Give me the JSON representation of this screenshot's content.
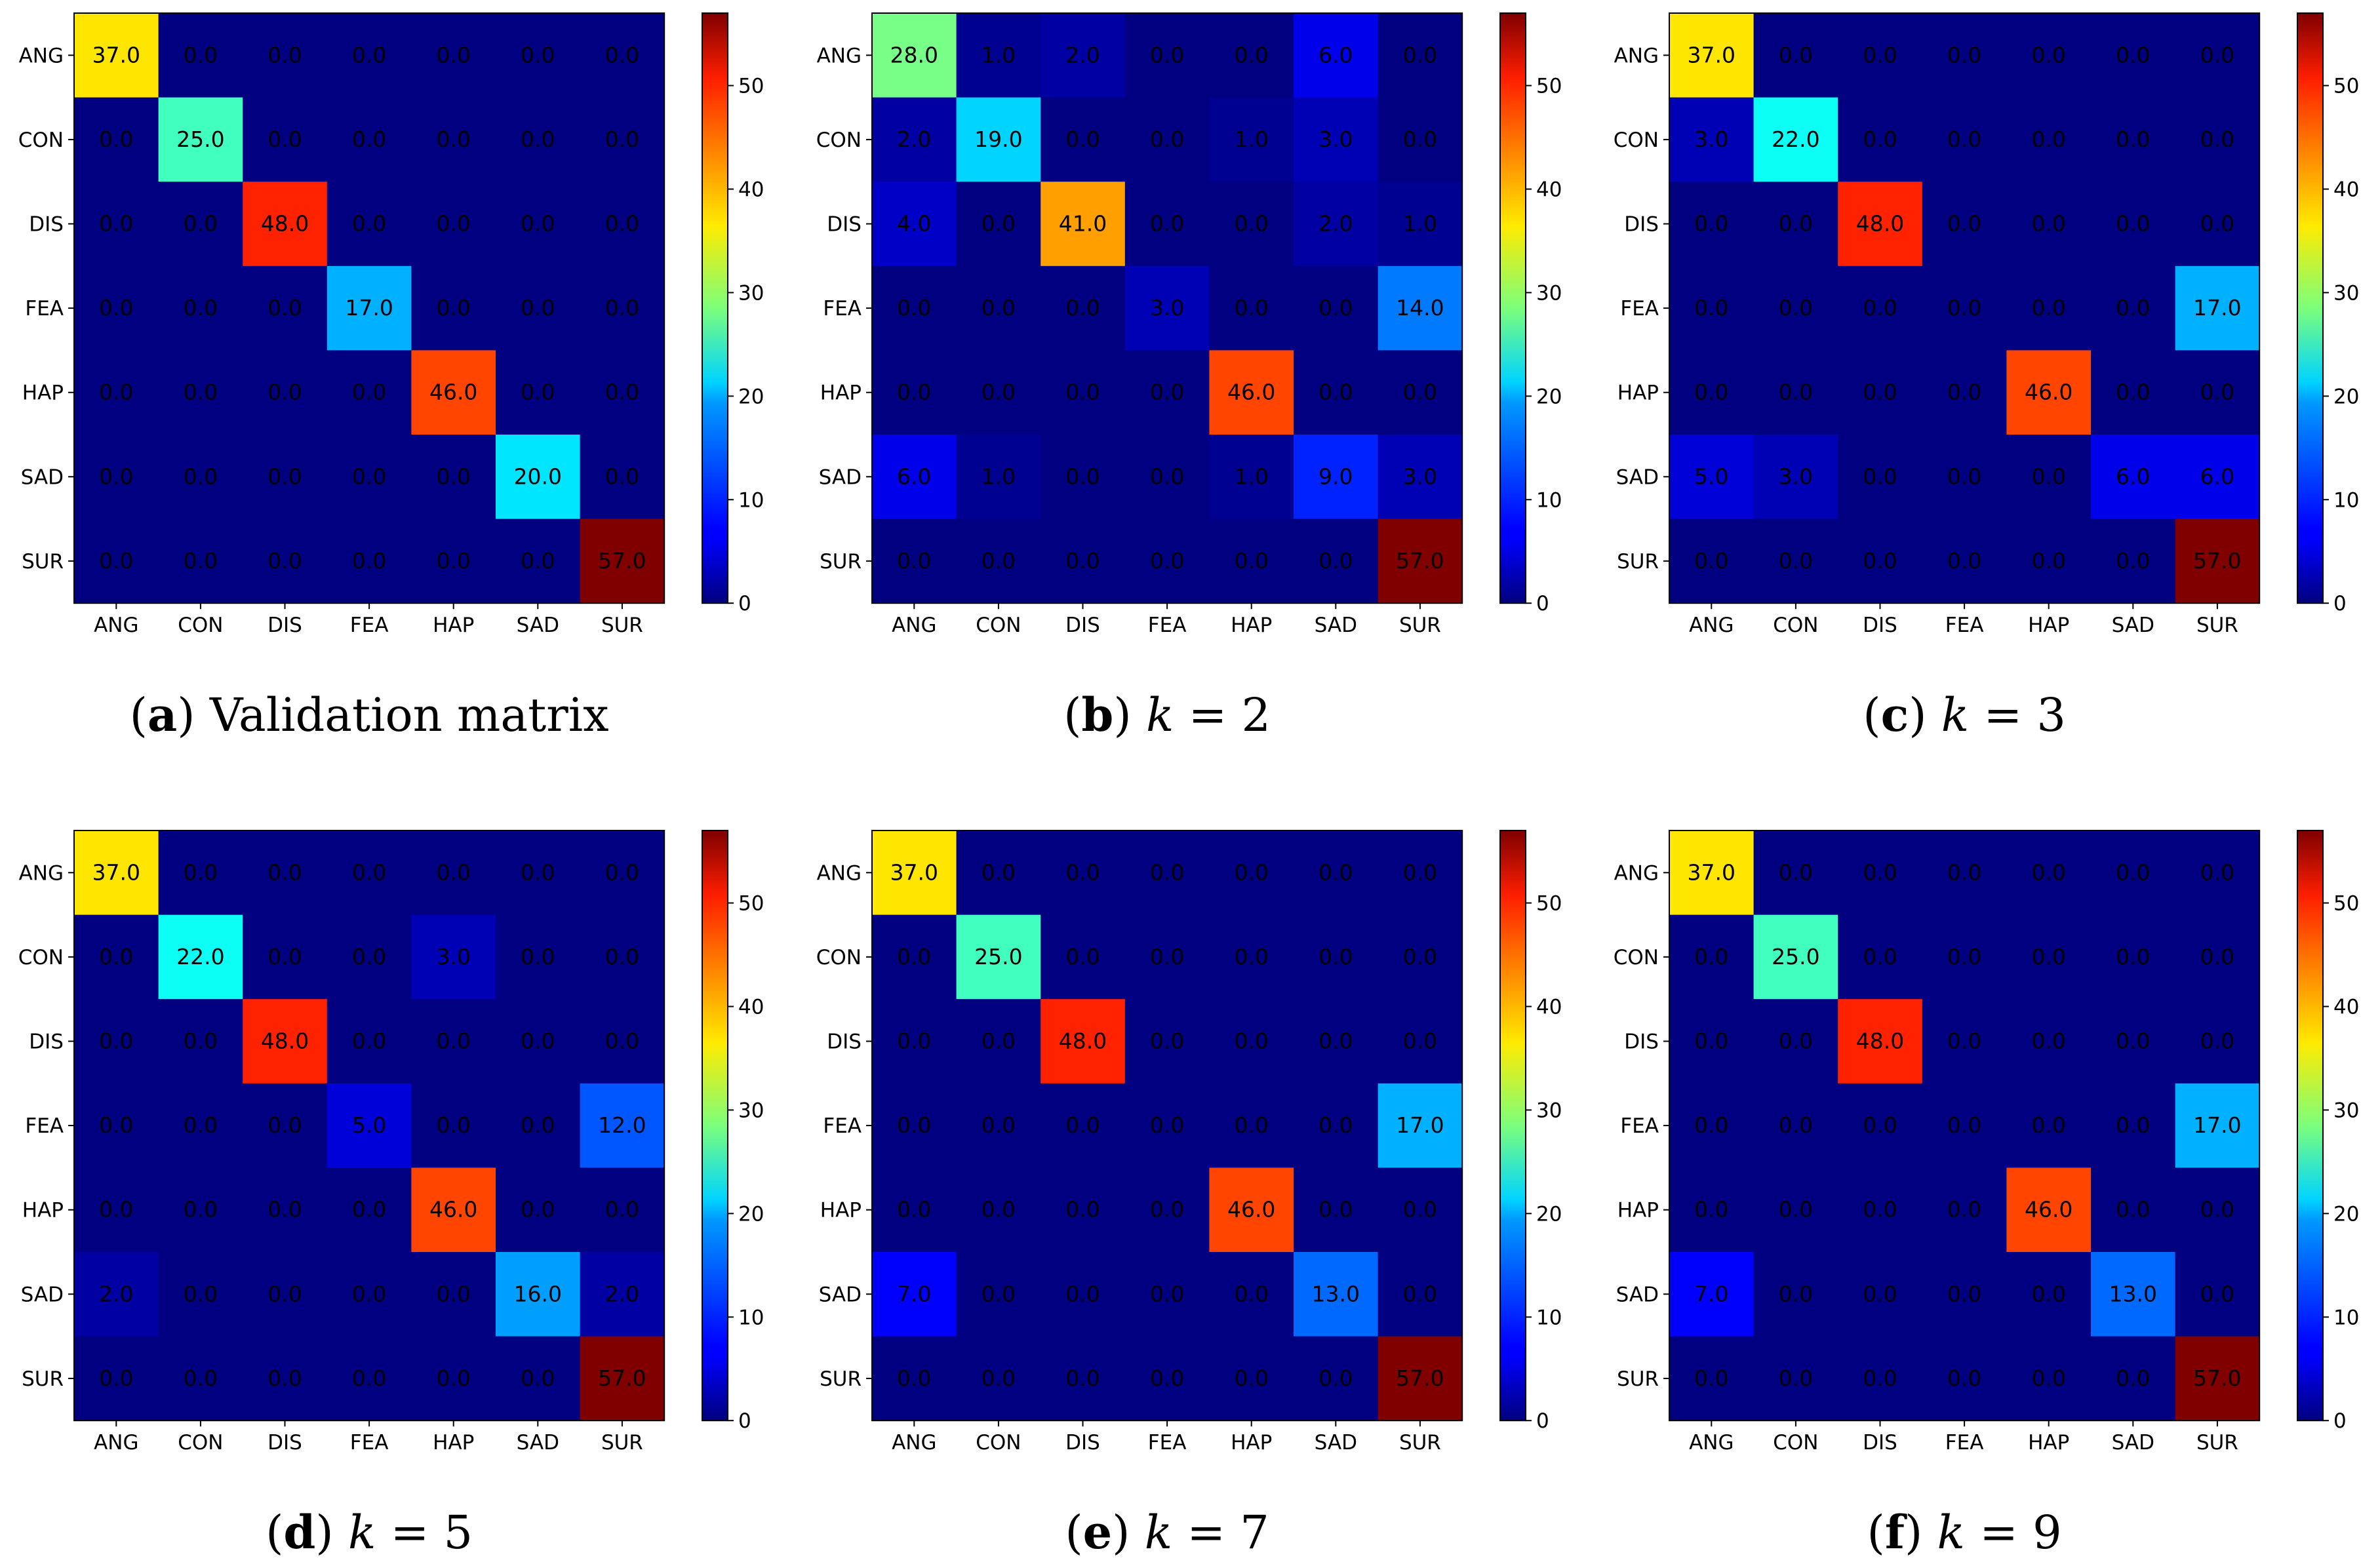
{
  "colors": {
    "colormap": "jet",
    "axis_line": "#000000",
    "text": "#000000"
  },
  "chart_data": [
    {
      "type": "heatmap",
      "panel_letter": "a",
      "caption_text": "Validation matrix",
      "caption_var": "",
      "caption_value": "",
      "x_categories": [
        "ANG",
        "CON",
        "DIS",
        "FEA",
        "HAP",
        "SAD",
        "SUR"
      ],
      "y_categories": [
        "ANG",
        "CON",
        "DIS",
        "FEA",
        "HAP",
        "SAD",
        "SUR"
      ],
      "values": [
        [
          37.0,
          0.0,
          0.0,
          0.0,
          0.0,
          0.0,
          0.0
        ],
        [
          0.0,
          25.0,
          0.0,
          0.0,
          0.0,
          0.0,
          0.0
        ],
        [
          0.0,
          0.0,
          48.0,
          0.0,
          0.0,
          0.0,
          0.0
        ],
        [
          0.0,
          0.0,
          0.0,
          17.0,
          0.0,
          0.0,
          0.0
        ],
        [
          0.0,
          0.0,
          0.0,
          0.0,
          46.0,
          0.0,
          0.0
        ],
        [
          0.0,
          0.0,
          0.0,
          0.0,
          0.0,
          20.0,
          0.0
        ],
        [
          0.0,
          0.0,
          0.0,
          0.0,
          0.0,
          0.0,
          57.0
        ]
      ],
      "value_labels": [
        [
          "37.0",
          "0.0",
          "0.0",
          "0.0",
          "0.0",
          "0.0",
          "0.0"
        ],
        [
          "0.0",
          "25.0",
          "0.0",
          "0.0",
          "0.0",
          "0.0",
          "0.0"
        ],
        [
          "0.0",
          "0.0",
          "48.0",
          "0.0",
          "0.0",
          "0.0",
          "0.0"
        ],
        [
          "0.0",
          "0.0",
          "0.0",
          "17.0",
          "0.0",
          "0.0",
          "0.0"
        ],
        [
          "0.0",
          "0.0",
          "0.0",
          "0.0",
          "46.0",
          "0.0",
          "0.0"
        ],
        [
          "0.0",
          "0.0",
          "0.0",
          "0.0",
          "0.0",
          "20.0",
          "0.0"
        ],
        [
          "0.0",
          "0.0",
          "0.0",
          "0.0",
          "0.0",
          "0.0",
          "57.0"
        ]
      ],
      "colorbar": {
        "min": 0,
        "max": 57,
        "ticks": [
          0,
          10,
          20,
          30,
          40,
          50
        ],
        "tick_labels": [
          "0",
          "10",
          "20",
          "30",
          "40",
          "50"
        ]
      }
    },
    {
      "type": "heatmap",
      "panel_letter": "b",
      "caption_text": "",
      "caption_var": "k",
      "caption_value": " = 2",
      "x_categories": [
        "ANG",
        "CON",
        "DIS",
        "FEA",
        "HAP",
        "SAD",
        "SUR"
      ],
      "y_categories": [
        "ANG",
        "CON",
        "DIS",
        "FEA",
        "HAP",
        "SAD",
        "SUR"
      ],
      "values": [
        [
          28.0,
          1.0,
          2.0,
          0.0,
          0.0,
          6.0,
          0.0
        ],
        [
          2.0,
          19.0,
          0.0,
          0.0,
          1.0,
          3.0,
          0.0
        ],
        [
          4.0,
          0.0,
          41.0,
          0.0,
          0.0,
          2.0,
          1.0
        ],
        [
          0.0,
          0.0,
          0.0,
          3.0,
          0.0,
          0.0,
          14.0
        ],
        [
          0.0,
          0.0,
          0.0,
          0.0,
          46.0,
          0.0,
          0.0
        ],
        [
          6.0,
          1.0,
          0.0,
          0.0,
          1.0,
          9.0,
          3.0
        ],
        [
          0.0,
          0.0,
          0.0,
          0.0,
          0.0,
          0.0,
          57.0
        ]
      ],
      "value_labels": [
        [
          "28.0",
          "1.0",
          "2.0",
          "0.0",
          "0.0",
          "6.0",
          "0.0"
        ],
        [
          "2.0",
          "19.0",
          "0.0",
          "0.0",
          "1.0",
          "3.0",
          "0.0"
        ],
        [
          "4.0",
          "0.0",
          "41.0",
          "0.0",
          "0.0",
          "2.0",
          "1.0"
        ],
        [
          "0.0",
          "0.0",
          "0.0",
          "3.0",
          "0.0",
          "0.0",
          "14.0"
        ],
        [
          "0.0",
          "0.0",
          "0.0",
          "0.0",
          "46.0",
          "0.0",
          "0.0"
        ],
        [
          "6.0",
          "1.0",
          "0.0",
          "0.0",
          "1.0",
          "9.0",
          "3.0"
        ],
        [
          "0.0",
          "0.0",
          "0.0",
          "0.0",
          "0.0",
          "0.0",
          "57.0"
        ]
      ],
      "colorbar": {
        "min": 0,
        "max": 57,
        "ticks": [
          0,
          10,
          20,
          30,
          40,
          50
        ],
        "tick_labels": [
          "0",
          "10",
          "20",
          "30",
          "40",
          "50"
        ]
      }
    },
    {
      "type": "heatmap",
      "panel_letter": "c",
      "caption_text": "",
      "caption_var": "k",
      "caption_value": " = 3",
      "x_categories": [
        "ANG",
        "CON",
        "DIS",
        "FEA",
        "HAP",
        "SAD",
        "SUR"
      ],
      "y_categories": [
        "ANG",
        "CON",
        "DIS",
        "FEA",
        "HAP",
        "SAD",
        "SUR"
      ],
      "values": [
        [
          37.0,
          0.0,
          0.0,
          0.0,
          0.0,
          0.0,
          0.0
        ],
        [
          3.0,
          22.0,
          0.0,
          0.0,
          0.0,
          0.0,
          0.0
        ],
        [
          0.0,
          0.0,
          48.0,
          0.0,
          0.0,
          0.0,
          0.0
        ],
        [
          0.0,
          0.0,
          0.0,
          0.0,
          0.0,
          0.0,
          17.0
        ],
        [
          0.0,
          0.0,
          0.0,
          0.0,
          46.0,
          0.0,
          0.0
        ],
        [
          5.0,
          3.0,
          0.0,
          0.0,
          0.0,
          6.0,
          6.0
        ],
        [
          0.0,
          0.0,
          0.0,
          0.0,
          0.0,
          0.0,
          57.0
        ]
      ],
      "value_labels": [
        [
          "37.0",
          "0.0",
          "0.0",
          "0.0",
          "0.0",
          "0.0",
          "0.0"
        ],
        [
          "3.0",
          "22.0",
          "0.0",
          "0.0",
          "0.0",
          "0.0",
          "0.0"
        ],
        [
          "0.0",
          "0.0",
          "48.0",
          "0.0",
          "0.0",
          "0.0",
          "0.0"
        ],
        [
          "0.0",
          "0.0",
          "0.0",
          "0.0",
          "0.0",
          "0.0",
          "17.0"
        ],
        [
          "0.0",
          "0.0",
          "0.0",
          "0.0",
          "46.0",
          "0.0",
          "0.0"
        ],
        [
          "5.0",
          "3.0",
          "0.0",
          "0.0",
          "0.0",
          "6.0",
          "6.0"
        ],
        [
          "0.0",
          "0.0",
          "0.0",
          "0.0",
          "0.0",
          "0.0",
          "57.0"
        ]
      ],
      "colorbar": {
        "min": 0,
        "max": 57,
        "ticks": [
          0,
          10,
          20,
          30,
          40,
          50
        ],
        "tick_labels": [
          "0",
          "10",
          "20",
          "30",
          "40",
          "50"
        ]
      }
    },
    {
      "type": "heatmap",
      "panel_letter": "d",
      "caption_text": "",
      "caption_var": "k",
      "caption_value": " = 5",
      "x_categories": [
        "ANG",
        "CON",
        "DIS",
        "FEA",
        "HAP",
        "SAD",
        "SUR"
      ],
      "y_categories": [
        "ANG",
        "CON",
        "DIS",
        "FEA",
        "HAP",
        "SAD",
        "SUR"
      ],
      "values": [
        [
          37.0,
          0.0,
          0.0,
          0.0,
          0.0,
          0.0,
          0.0
        ],
        [
          0.0,
          22.0,
          0.0,
          0.0,
          3.0,
          0.0,
          0.0
        ],
        [
          0.0,
          0.0,
          48.0,
          0.0,
          0.0,
          0.0,
          0.0
        ],
        [
          0.0,
          0.0,
          0.0,
          5.0,
          0.0,
          0.0,
          12.0
        ],
        [
          0.0,
          0.0,
          0.0,
          0.0,
          46.0,
          0.0,
          0.0
        ],
        [
          2.0,
          0.0,
          0.0,
          0.0,
          0.0,
          16.0,
          2.0
        ],
        [
          0.0,
          0.0,
          0.0,
          0.0,
          0.0,
          0.0,
          57.0
        ]
      ],
      "value_labels": [
        [
          "37.0",
          "0.0",
          "0.0",
          "0.0",
          "0.0",
          "0.0",
          "0.0"
        ],
        [
          "0.0",
          "22.0",
          "0.0",
          "0.0",
          "3.0",
          "0.0",
          "0.0"
        ],
        [
          "0.0",
          "0.0",
          "48.0",
          "0.0",
          "0.0",
          "0.0",
          "0.0"
        ],
        [
          "0.0",
          "0.0",
          "0.0",
          "5.0",
          "0.0",
          "0.0",
          "12.0"
        ],
        [
          "0.0",
          "0.0",
          "0.0",
          "0.0",
          "46.0",
          "0.0",
          "0.0"
        ],
        [
          "2.0",
          "0.0",
          "0.0",
          "0.0",
          "0.0",
          "16.0",
          "2.0"
        ],
        [
          "0.0",
          "0.0",
          "0.0",
          "0.0",
          "0.0",
          "0.0",
          "57.0"
        ]
      ],
      "colorbar": {
        "min": 0,
        "max": 57,
        "ticks": [
          0,
          10,
          20,
          30,
          40,
          50
        ],
        "tick_labels": [
          "0",
          "10",
          "20",
          "30",
          "40",
          "50"
        ]
      }
    },
    {
      "type": "heatmap",
      "panel_letter": "e",
      "caption_text": "",
      "caption_var": "k",
      "caption_value": " = 7",
      "x_categories": [
        "ANG",
        "CON",
        "DIS",
        "FEA",
        "HAP",
        "SAD",
        "SUR"
      ],
      "y_categories": [
        "ANG",
        "CON",
        "DIS",
        "FEA",
        "HAP",
        "SAD",
        "SUR"
      ],
      "values": [
        [
          37.0,
          0.0,
          0.0,
          0.0,
          0.0,
          0.0,
          0.0
        ],
        [
          0.0,
          25.0,
          0.0,
          0.0,
          0.0,
          0.0,
          0.0
        ],
        [
          0.0,
          0.0,
          48.0,
          0.0,
          0.0,
          0.0,
          0.0
        ],
        [
          0.0,
          0.0,
          0.0,
          0.0,
          0.0,
          0.0,
          17.0
        ],
        [
          0.0,
          0.0,
          0.0,
          0.0,
          46.0,
          0.0,
          0.0
        ],
        [
          7.0,
          0.0,
          0.0,
          0.0,
          0.0,
          13.0,
          0.0
        ],
        [
          0.0,
          0.0,
          0.0,
          0.0,
          0.0,
          0.0,
          57.0
        ]
      ],
      "value_labels": [
        [
          "37.0",
          "0.0",
          "0.0",
          "0.0",
          "0.0",
          "0.0",
          "0.0"
        ],
        [
          "0.0",
          "25.0",
          "0.0",
          "0.0",
          "0.0",
          "0.0",
          "0.0"
        ],
        [
          "0.0",
          "0.0",
          "48.0",
          "0.0",
          "0.0",
          "0.0",
          "0.0"
        ],
        [
          "0.0",
          "0.0",
          "0.0",
          "0.0",
          "0.0",
          "0.0",
          "17.0"
        ],
        [
          "0.0",
          "0.0",
          "0.0",
          "0.0",
          "46.0",
          "0.0",
          "0.0"
        ],
        [
          "7.0",
          "0.0",
          "0.0",
          "0.0",
          "0.0",
          "13.0",
          "0.0"
        ],
        [
          "0.0",
          "0.0",
          "0.0",
          "0.0",
          "0.0",
          "0.0",
          "57.0"
        ]
      ],
      "colorbar": {
        "min": 0,
        "max": 57,
        "ticks": [
          0,
          10,
          20,
          30,
          40,
          50
        ],
        "tick_labels": [
          "0",
          "10",
          "20",
          "30",
          "40",
          "50"
        ]
      }
    },
    {
      "type": "heatmap",
      "panel_letter": "f",
      "caption_text": "",
      "caption_var": "k",
      "caption_value": " = 9",
      "x_categories": [
        "ANG",
        "CON",
        "DIS",
        "FEA",
        "HAP",
        "SAD",
        "SUR"
      ],
      "y_categories": [
        "ANG",
        "CON",
        "DIS",
        "FEA",
        "HAP",
        "SAD",
        "SUR"
      ],
      "values": [
        [
          37.0,
          0.0,
          0.0,
          0.0,
          0.0,
          0.0,
          0.0
        ],
        [
          0.0,
          25.0,
          0.0,
          0.0,
          0.0,
          0.0,
          0.0
        ],
        [
          0.0,
          0.0,
          48.0,
          0.0,
          0.0,
          0.0,
          0.0
        ],
        [
          0.0,
          0.0,
          0.0,
          0.0,
          0.0,
          0.0,
          17.0
        ],
        [
          0.0,
          0.0,
          0.0,
          0.0,
          46.0,
          0.0,
          0.0
        ],
        [
          7.0,
          0.0,
          0.0,
          0.0,
          0.0,
          13.0,
          0.0
        ],
        [
          0.0,
          0.0,
          0.0,
          0.0,
          0.0,
          0.0,
          57.0
        ]
      ],
      "value_labels": [
        [
          "37.0",
          "0.0",
          "0.0",
          "0.0",
          "0.0",
          "0.0",
          "0.0"
        ],
        [
          "0.0",
          "25.0",
          "0.0",
          "0.0",
          "0.0",
          "0.0",
          "0.0"
        ],
        [
          "0.0",
          "0.0",
          "48.0",
          "0.0",
          "0.0",
          "0.0",
          "0.0"
        ],
        [
          "0.0",
          "0.0",
          "0.0",
          "0.0",
          "0.0",
          "0.0",
          "17.0"
        ],
        [
          "0.0",
          "0.0",
          "0.0",
          "0.0",
          "46.0",
          "0.0",
          "0.0"
        ],
        [
          "7.0",
          "0.0",
          "0.0",
          "0.0",
          "0.0",
          "13.0",
          "0.0"
        ],
        [
          "0.0",
          "0.0",
          "0.0",
          "0.0",
          "0.0",
          "0.0",
          "57.0"
        ]
      ],
      "colorbar": {
        "min": 0,
        "max": 57,
        "ticks": [
          0,
          10,
          20,
          30,
          40,
          50
        ],
        "tick_labels": [
          "0",
          "10",
          "20",
          "30",
          "40",
          "50"
        ]
      }
    }
  ]
}
